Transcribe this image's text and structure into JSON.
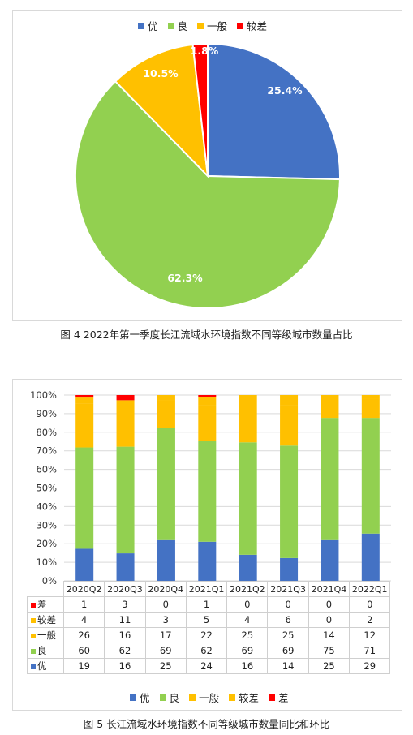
{
  "colors": {
    "you": "#4472c4",
    "liang": "#92d050",
    "yiban": "#ffc000",
    "jiaocha": "#ffc000",
    "cha": "#ff0000"
  },
  "pie": {
    "caption": "图 4   2022年第一季度长江流域水环境指数不同等级城市数量占比",
    "legend": [
      {
        "label": "优",
        "color": "#4472c4"
      },
      {
        "label": "良",
        "color": "#92d050"
      },
      {
        "label": "一般",
        "color": "#ffc000"
      },
      {
        "label": "较差",
        "color": "#ff0000"
      }
    ]
  },
  "bar": {
    "caption": "图 5   长江流域水环境指数不同等级城市数量同比和环比",
    "legend": [
      {
        "label": "优",
        "color": "#4472c4"
      },
      {
        "label": "良",
        "color": "#92d050"
      },
      {
        "label": "一般",
        "color": "#ffc000"
      },
      {
        "label": "较差",
        "color": "#ffc000"
      },
      {
        "label": "差",
        "color": "#ff0000"
      }
    ]
  },
  "chart_data": [
    {
      "type": "pie",
      "title": "",
      "categories": [
        "优",
        "良",
        "一般",
        "较差"
      ],
      "values": [
        25.4,
        62.3,
        10.5,
        1.8
      ],
      "labels": [
        "25.4%",
        "62.3%",
        "10.5%",
        "1.8%"
      ],
      "colors": [
        "#4472c4",
        "#92d050",
        "#ffc000",
        "#ff0000"
      ],
      "legend_position": "top"
    },
    {
      "type": "bar",
      "stacked": "percent",
      "title": "",
      "categories": [
        "2020Q2",
        "2020Q3",
        "2020Q4",
        "2021Q1",
        "2021Q2",
        "2021Q3",
        "2021Q4",
        "2022Q1"
      ],
      "ylim": [
        0,
        100
      ],
      "yticks": [
        "0%",
        "10%",
        "20%",
        "30%",
        "40%",
        "50%",
        "60%",
        "70%",
        "80%",
        "90%",
        "100%"
      ],
      "grid": true,
      "legend_position": "bottom",
      "series": [
        {
          "name": "优",
          "color": "#4472c4",
          "values": [
            19,
            16,
            25,
            24,
            16,
            14,
            25,
            29
          ]
        },
        {
          "name": "良",
          "color": "#92d050",
          "values": [
            60,
            62,
            69,
            62,
            69,
            69,
            75,
            71
          ]
        },
        {
          "name": "一般",
          "color": "#ffc000",
          "values": [
            26,
            16,
            17,
            22,
            25,
            25,
            14,
            12
          ]
        },
        {
          "name": "较差",
          "color": "#ffc000",
          "values": [
            4,
            11,
            3,
            5,
            4,
            6,
            0,
            2
          ]
        },
        {
          "name": "差",
          "color": "#ff0000",
          "values": [
            1,
            3,
            0,
            1,
            0,
            0,
            0,
            0
          ]
        }
      ],
      "table_row_order": [
        "差",
        "较差",
        "一般",
        "良",
        "优"
      ]
    }
  ]
}
